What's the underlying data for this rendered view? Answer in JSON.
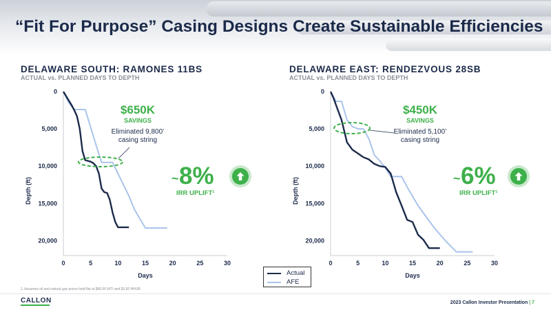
{
  "title": "“Fit For Purpose” Casing Designs Create Sustainable Efficiencies",
  "legend": {
    "actual_label": "Actual",
    "afe_label": "AFE"
  },
  "colors": {
    "actual": "#1b2a4a",
    "afe": "#a9c4ea",
    "accent": "#3db04a",
    "navy": "#1b2a4a"
  },
  "panels": [
    {
      "title": "DELAWARE SOUTH: RAMONES 11BS",
      "subtitle": "ACTUAL vs. PLANNED DAYS TO DEPTH",
      "savings_amount": "$650K",
      "savings_label": "SAVINGS",
      "annotation_line1": "Eliminated 9,800’",
      "annotation_line2": "casing string",
      "irr_tilde": "~",
      "irr_value": "8%",
      "irr_label": "IRR UPLIFT¹"
    },
    {
      "title": "DELAWARE EAST: RENDEZVOUS 28SB",
      "subtitle": "ACTUAL vs. PLANNED DAYS TO DEPTH",
      "savings_amount": "$450K",
      "savings_label": "SAVINGS",
      "annotation_line1": "Eliminated 5,100’",
      "annotation_line2": "casing string",
      "irr_tilde": "~",
      "irr_value": "6%",
      "irr_label": "IRR UPLIFT¹"
    }
  ],
  "chart_data": [
    {
      "type": "line",
      "xlabel": "Days",
      "ylabel": "Depth (ft)",
      "xlim": [
        0,
        30
      ],
      "ylim": [
        0,
        22000
      ],
      "y_inverted": true,
      "x_ticks": [
        0,
        5,
        10,
        15,
        20,
        25,
        30
      ],
      "y_ticks": [
        0,
        5000,
        10000,
        15000,
        20000
      ],
      "x_tick_labels": [
        "0",
        "5",
        "10",
        "15",
        "20",
        "25",
        "30"
      ],
      "y_tick_labels": [
        "0",
        "5,000",
        "10,000",
        "15,000",
        "20,000"
      ],
      "series": [
        {
          "name": "Actual",
          "points": [
            [
              0,
              0
            ],
            [
              0.5,
              600
            ],
            [
              1,
              1200
            ],
            [
              1.5,
              1800
            ],
            [
              2,
              2500
            ],
            [
              2.5,
              3300
            ],
            [
              3,
              5000
            ],
            [
              3.5,
              8000
            ],
            [
              4,
              9200
            ],
            [
              5,
              9400
            ],
            [
              5.5,
              9600
            ],
            [
              6,
              10000
            ],
            [
              6.5,
              11000
            ],
            [
              7,
              13000
            ],
            [
              7.5,
              13500
            ],
            [
              8,
              13600
            ],
            [
              8.5,
              14500
            ],
            [
              9,
              16200
            ],
            [
              9.5,
              17500
            ],
            [
              10,
              18200
            ],
            [
              11,
              18200
            ],
            [
              12,
              18200
            ]
          ]
        },
        {
          "name": "AFE",
          "points": [
            [
              0,
              0
            ],
            [
              1,
              1500
            ],
            [
              2,
              2400
            ],
            [
              4,
              2400
            ],
            [
              5,
              4800
            ],
            [
              6,
              7200
            ],
            [
              7,
              9500
            ],
            [
              8,
              9500
            ],
            [
              9,
              9500
            ],
            [
              10,
              11000
            ],
            [
              12,
              14000
            ],
            [
              13,
              15800
            ],
            [
              15,
              18300
            ],
            [
              17,
              18300
            ],
            [
              19,
              18300
            ]
          ]
        }
      ]
    },
    {
      "type": "line",
      "xlabel": "Days",
      "ylabel": "Depth (ft)",
      "xlim": [
        0,
        30
      ],
      "ylim": [
        0,
        22000
      ],
      "y_inverted": true,
      "x_ticks": [
        0,
        5,
        10,
        15,
        20,
        25,
        30
      ],
      "y_ticks": [
        0,
        5000,
        10000,
        15000,
        20000
      ],
      "x_tick_labels": [
        "0",
        "5",
        "10",
        "15",
        "20",
        "25",
        "30"
      ],
      "y_tick_labels": [
        "0",
        "5,000",
        "10,000",
        "15,000",
        "20,000"
      ],
      "series": [
        {
          "name": "Actual",
          "points": [
            [
              0,
              0
            ],
            [
              0.5,
              800
            ],
            [
              1,
              1800
            ],
            [
              2,
              3800
            ],
            [
              3,
              6800
            ],
            [
              4,
              7800
            ],
            [
              5,
              8300
            ],
            [
              6,
              8800
            ],
            [
              7,
              9100
            ],
            [
              8,
              9700
            ],
            [
              9,
              10000
            ],
            [
              10,
              10100
            ],
            [
              11,
              11000
            ],
            [
              12,
              13500
            ],
            [
              13,
              15300
            ],
            [
              14,
              17200
            ],
            [
              15,
              17500
            ],
            [
              16,
              19200
            ],
            [
              17,
              19900
            ],
            [
              18,
              21000
            ],
            [
              19,
              21000
            ],
            [
              20,
              21000
            ]
          ]
        },
        {
          "name": "AFE",
          "points": [
            [
              0,
              0
            ],
            [
              1,
              1300
            ],
            [
              2,
              1300
            ],
            [
              3,
              3800
            ],
            [
              4,
              4700
            ],
            [
              5,
              5000
            ],
            [
              6,
              5000
            ],
            [
              7,
              6300
            ],
            [
              8,
              8500
            ],
            [
              9,
              9300
            ],
            [
              10,
              10200
            ],
            [
              11,
              11400
            ],
            [
              13,
              11400
            ],
            [
              14,
              12800
            ],
            [
              16,
              15300
            ],
            [
              19,
              18300
            ],
            [
              21,
              20000
            ],
            [
              23,
              21500
            ],
            [
              24,
              21500
            ],
            [
              26,
              21500
            ]
          ]
        }
      ]
    }
  ],
  "footnote": "1. Assumes oil and natural gas prices held flat at $80.00 WTI and $3.50 HHUB",
  "logo_text": "CALLON",
  "footer_text": "2023 Callon Investor Presentation",
  "footer_sep": " | ",
  "page_number": "7"
}
